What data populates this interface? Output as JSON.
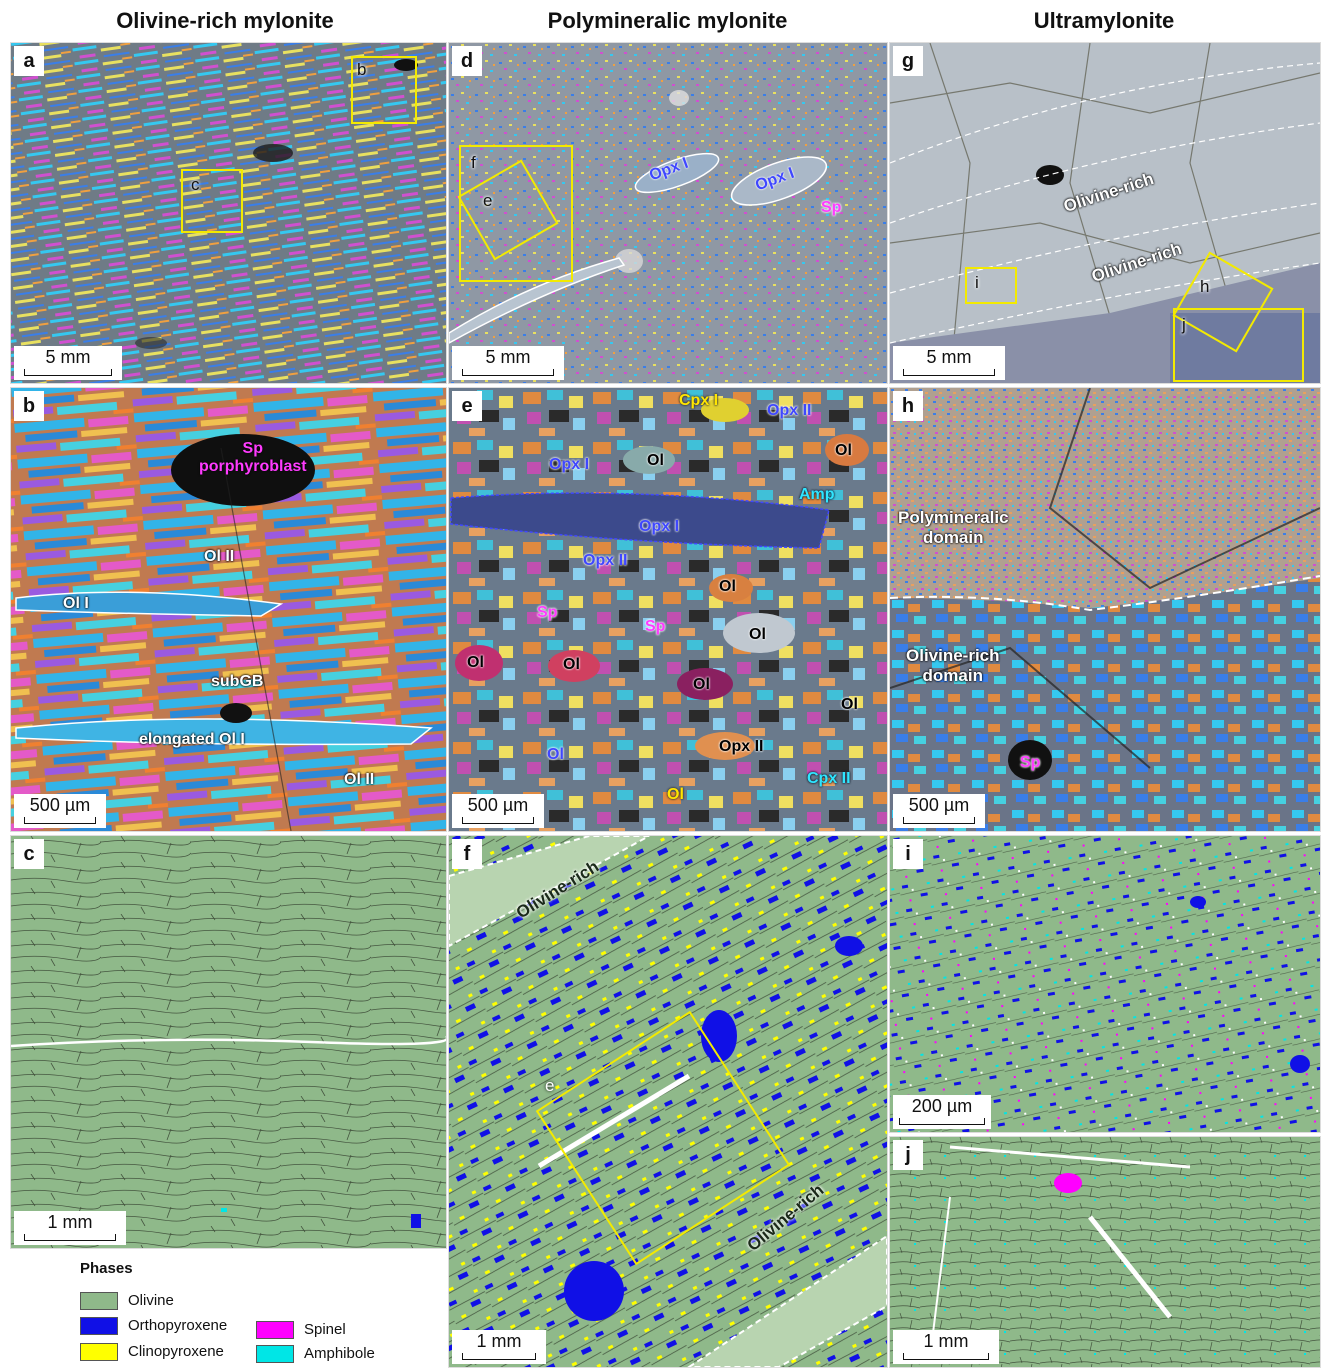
{
  "columns": [
    {
      "title": "Olivine-rich mylonite"
    },
    {
      "title": "Polymineralic mylonite"
    },
    {
      "title": "Ultramylonite"
    }
  ],
  "panels": {
    "a": {
      "label": "a",
      "scale": "5 mm",
      "boxes": [
        "b",
        "c"
      ]
    },
    "b": {
      "label": "b",
      "scale": "500 µm",
      "annotations": [
        "Sp",
        "porphyroblast",
        "Ol II",
        "Ol I",
        "subGB",
        "elongated Ol I",
        "Ol II"
      ]
    },
    "c": {
      "label": "c",
      "scale": "1 mm"
    },
    "d": {
      "label": "d",
      "scale": "5 mm",
      "boxes": [
        "f",
        "e"
      ],
      "annotations": [
        "Opx I",
        "Opx I",
        "Sp"
      ]
    },
    "e": {
      "label": "e",
      "scale": "500 µm",
      "annotations": [
        "Cpx I",
        "Opx II",
        "Opx I",
        "Ol",
        "Ol",
        "Amp",
        "Opx I",
        "Opx II",
        "Ol",
        "Sp",
        "Sp",
        "Ol",
        "Ol",
        "Ol",
        "Ol",
        "Ol",
        "Ol",
        "Opx II",
        "Ol",
        "Cpx II",
        "Amp"
      ]
    },
    "f": {
      "label": "f",
      "scale": "1 mm",
      "boxes": [
        "e"
      ],
      "annotations": [
        "Olivine-rich",
        "Olivine-rich"
      ]
    },
    "g": {
      "label": "g",
      "scale": "5 mm",
      "boxes": [
        "i",
        "h",
        "j"
      ],
      "annotations": [
        "Olivine-rich",
        "Olivine-rich"
      ]
    },
    "h": {
      "label": "h",
      "scale": "500 µm",
      "annotations": [
        "Polymineralic",
        "domain",
        "Olivine-rich",
        "domain",
        "Sp"
      ]
    },
    "i": {
      "label": "i",
      "scale": "200 µm"
    },
    "j": {
      "label": "j",
      "scale": "1 mm"
    }
  },
  "legend": {
    "title": "Phases",
    "items": [
      {
        "name": "Olivine",
        "color": "#8fb98a"
      },
      {
        "name": "Orthopyroxene",
        "color": "#1010e6"
      },
      {
        "name": "Clinopyroxene",
        "color": "#ffff00"
      },
      {
        "name": "Spinel",
        "color": "#ff00ff"
      },
      {
        "name": "Amphibole",
        "color": "#00e6e6"
      }
    ]
  }
}
